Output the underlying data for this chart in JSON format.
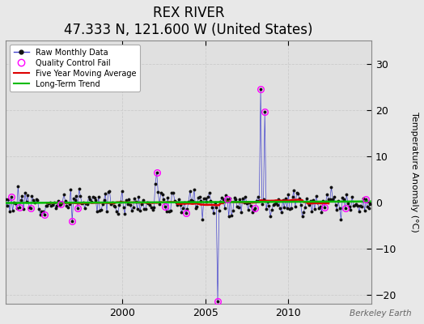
{
  "title": "REX RIVER",
  "subtitle": "47.333 N, 121.600 W (United States)",
  "ylabel": "Temperature Anomaly (°C)",
  "watermark": "Berkeley Earth",
  "bg_color": "#e8e8e8",
  "plot_bg_color": "#e0e0e0",
  "ylim": [
    -22,
    35
  ],
  "yticks": [
    -20,
    -10,
    0,
    10,
    20,
    30
  ],
  "start_year": 1993.0,
  "end_year": 2015.0,
  "raw_color": "#4444cc",
  "raw_marker_color": "#111111",
  "qc_fail_color": "#ff00ff",
  "moving_avg_color": "#dd0000",
  "trend_color": "#00bb00",
  "grid_color": "#cccccc",
  "xtick_years": [
    2000,
    2005,
    2010
  ],
  "legend_loc": "upper left",
  "title_fontsize": 12,
  "subtitle_fontsize": 9,
  "tick_fontsize": 9,
  "ylabel_fontsize": 8
}
